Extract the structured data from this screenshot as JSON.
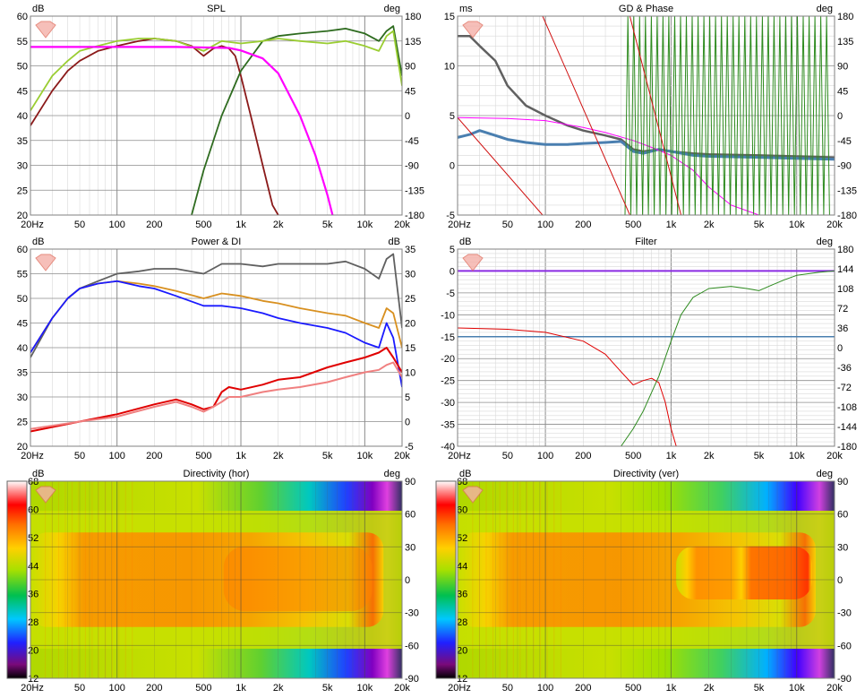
{
  "colors": {
    "grid_major": "#8c8c8c",
    "grid_minor": "#d9d9d9",
    "woofer": "#8b1a1a",
    "tweeter": "#2e6b1f",
    "sum": "#9acd32",
    "lowpass_target": "#ff00ff",
    "gd": "#4a7fb0",
    "power": "#1a1aff",
    "di": "#e00000"
  },
  "chart_data": [
    {
      "id": "spl",
      "type": "line",
      "title": "SPL",
      "xlabel": "",
      "ylabel": "dB",
      "y2label": "deg",
      "xscale": "log",
      "xlim": [
        20,
        20000
      ],
      "x_ticks": [
        "20Hz",
        "50",
        "100",
        "200",
        "500",
        "1k",
        "2k",
        "5k",
        "10k",
        "20k"
      ],
      "ylim": [
        20,
        60
      ],
      "y_ticks": [
        "20",
        "25",
        "30",
        "35",
        "40",
        "45",
        "50",
        "55",
        "60"
      ],
      "y2lim": [
        -180,
        180
      ],
      "y2_ticks": [
        "-180",
        "-135",
        "-90",
        "-45",
        "0",
        "45",
        "90",
        "135",
        "180"
      ],
      "series": [
        {
          "role": "woofer",
          "x": [
            20,
            30,
            40,
            50,
            70,
            100,
            150,
            200,
            300,
            400,
            500,
            600,
            700,
            800,
            900,
            1000,
            1200,
            1500,
            1800,
            2000
          ],
          "y": [
            38,
            45,
            49,
            51,
            53,
            54,
            55,
            55.5,
            55,
            54,
            52,
            53.5,
            54,
            53.5,
            52,
            48,
            40,
            30,
            22,
            20
          ]
        },
        {
          "role": "tweeter",
          "x": [
            400,
            500,
            700,
            1000,
            1500,
            2000,
            3000,
            5000,
            7000,
            10000,
            13000,
            15000,
            17000,
            20000
          ],
          "y": [
            20,
            29,
            40,
            49,
            55,
            56,
            56.5,
            57,
            57.5,
            56.5,
            55,
            57,
            58,
            48
          ]
        },
        {
          "role": "sum",
          "x": [
            20,
            30,
            40,
            50,
            70,
            100,
            150,
            200,
            300,
            500,
            700,
            1000,
            1500,
            2000,
            3000,
            5000,
            7000,
            10000,
            13000,
            15000,
            17000,
            20000
          ],
          "y": [
            41,
            48,
            51,
            53,
            54,
            55,
            55.5,
            55.5,
            55,
            53,
            55,
            54.5,
            55,
            55.5,
            55,
            54.5,
            55,
            54,
            53,
            56,
            57,
            46
          ]
        },
        {
          "role": "lowpass_target",
          "x": [
            20,
            100,
            300,
            800,
            1000,
            1500,
            2000,
            3000,
            4000,
            5000,
            5500
          ],
          "y": [
            53.8,
            53.8,
            53.8,
            53.6,
            53.1,
            51.5,
            48.5,
            40,
            32,
            24,
            20
          ]
        }
      ]
    },
    {
      "id": "gd_phase",
      "type": "line",
      "title": "GD & Phase",
      "xlabel": "",
      "ylabel": "ms",
      "y2label": "deg",
      "xscale": "log",
      "xlim": [
        20,
        20000
      ],
      "x_ticks": [
        "20Hz",
        "50",
        "100",
        "200",
        "500",
        "1k",
        "2k",
        "5k",
        "10k",
        "20k"
      ],
      "ylim": [
        -5,
        15
      ],
      "y_ticks": [
        "-5",
        "0",
        "5",
        "10",
        "15"
      ],
      "y2lim": [
        -180,
        180
      ],
      "y2_ticks": [
        "-180",
        "-135",
        "-90",
        "-45",
        "0",
        "45",
        "90",
        "135",
        "180"
      ],
      "series": [
        {
          "role": "group_delay",
          "x": [
            20,
            25,
            30,
            40,
            50,
            70,
            100,
            150,
            200,
            300,
            400,
            500,
            600,
            800,
            1000,
            1500,
            2000,
            5000,
            10000,
            20000
          ],
          "y": [
            13,
            13,
            12,
            10.5,
            8,
            6,
            5,
            4,
            3.5,
            3,
            2.6,
            1.6,
            1.4,
            1.6,
            1.4,
            1.2,
            1.1,
            1.0,
            0.9,
            0.8
          ]
        },
        {
          "role": "gd_total",
          "x": [
            20,
            25,
            30,
            40,
            50,
            70,
            100,
            150,
            200,
            300,
            400,
            500,
            600,
            800,
            1000,
            1500,
            2000,
            5000,
            10000,
            20000
          ],
          "y": [
            2.8,
            3.1,
            3.5,
            3.0,
            2.6,
            2.3,
            2.1,
            2.1,
            2.2,
            2.3,
            2.4,
            1.4,
            1.2,
            1.6,
            1.4,
            1.0,
            0.9,
            0.8,
            0.7,
            0.6
          ]
        },
        {
          "role": "lp_gd",
          "x": [
            20,
            50,
            100,
            200,
            300,
            500,
            700,
            1000,
            1500,
            2000,
            3000,
            5000,
            10000,
            20000
          ],
          "y": [
            4.8,
            4.7,
            4.5,
            3.8,
            3.3,
            2.5,
            1.8,
            1.0,
            -0.5,
            -2.2,
            -4,
            -5,
            -5,
            -5
          ]
        }
      ]
    },
    {
      "id": "power_di",
      "type": "line",
      "title": "Power & DI",
      "xlabel": "",
      "ylabel": "dB",
      "y2label": "dB",
      "xscale": "log",
      "xlim": [
        20,
        20000
      ],
      "x_ticks": [
        "20Hz",
        "50",
        "100",
        "200",
        "500",
        "1k",
        "2k",
        "5k",
        "10k",
        "20k"
      ],
      "ylim": [
        20,
        60
      ],
      "y_ticks": [
        "20",
        "25",
        "30",
        "35",
        "40",
        "45",
        "50",
        "55",
        "60"
      ],
      "y2lim": [
        -5,
        35
      ],
      "y2_ticks": [
        "-5",
        "0",
        "5",
        "10",
        "15",
        "20",
        "25",
        "30",
        "35"
      ],
      "series": [
        {
          "role": "on_axis",
          "x": [
            20,
            30,
            40,
            50,
            70,
            100,
            150,
            200,
            300,
            500,
            700,
            1000,
            1500,
            2000,
            3000,
            5000,
            7000,
            10000,
            13000,
            15000,
            17000,
            20000
          ],
          "y": [
            38,
            46,
            50,
            52,
            53.5,
            55,
            55.5,
            56,
            56,
            55,
            57,
            57,
            56.5,
            57,
            57,
            57,
            57.5,
            56,
            54,
            58,
            59,
            44
          ]
        },
        {
          "role": "listening_window",
          "x": [
            20,
            30,
            40,
            50,
            70,
            100,
            150,
            200,
            300,
            500,
            700,
            1000,
            1500,
            2000,
            3000,
            5000,
            7000,
            10000,
            13000,
            15000,
            17000,
            20000
          ],
          "y": [
            39,
            46,
            50,
            52,
            53,
            53.5,
            53,
            52.5,
            51.5,
            50,
            51,
            50.5,
            49.5,
            49,
            48,
            47,
            46.5,
            45,
            44,
            48,
            47,
            40
          ]
        },
        {
          "role": "power",
          "x": [
            20,
            30,
            40,
            50,
            70,
            100,
            150,
            200,
            300,
            500,
            700,
            1000,
            1500,
            2000,
            3000,
            5000,
            7000,
            10000,
            13000,
            15000,
            17000,
            20000
          ],
          "y": [
            39,
            46,
            50,
            52,
            53,
            53.5,
            52.5,
            52,
            50.5,
            48.5,
            48.5,
            48,
            47,
            46,
            45,
            44,
            43,
            41,
            40,
            45,
            42,
            32
          ]
        },
        {
          "role": "di",
          "x": [
            20,
            50,
            100,
            200,
            300,
            400,
            500,
            600,
            700,
            800,
            1000,
            1500,
            2000,
            3000,
            5000,
            7000,
            10000,
            13000,
            15000,
            17000,
            20000
          ],
          "y": [
            23,
            25,
            26.5,
            28.5,
            29.5,
            28.5,
            27.5,
            28,
            31,
            32,
            31.5,
            32.5,
            33.5,
            34,
            36,
            37,
            38,
            39,
            40,
            38,
            35
          ]
        },
        {
          "role": "sound_power_di",
          "x": [
            20,
            50,
            100,
            200,
            300,
            400,
            500,
            600,
            700,
            800,
            1000,
            1500,
            2000,
            3000,
            5000,
            7000,
            10000,
            13000,
            15000,
            17000,
            20000
          ],
          "y": [
            23.5,
            25,
            26,
            28,
            29,
            28,
            27,
            28,
            29,
            30,
            30,
            31,
            31.5,
            32,
            33,
            34,
            35,
            35.5,
            36.5,
            37,
            34
          ]
        }
      ]
    },
    {
      "id": "filter",
      "type": "line",
      "title": "Filter",
      "xlabel": "",
      "ylabel": "dB",
      "y2label": "deg",
      "xscale": "log",
      "xlim": [
        20,
        20000
      ],
      "x_ticks": [
        "20Hz",
        "50",
        "100",
        "200",
        "500",
        "1k",
        "2k",
        "5k",
        "10k",
        "20k"
      ],
      "ylim": [
        -40,
        5
      ],
      "y_ticks": [
        "-40",
        "-35",
        "-30",
        "-25",
        "-20",
        "-15",
        "-10",
        "-5",
        "0",
        "5"
      ],
      "y2lim": [
        -180,
        180
      ],
      "y2_ticks": [
        "-180",
        "-144",
        "-108",
        "-72",
        "-36",
        "0",
        "36",
        "72",
        "108",
        "144",
        "180"
      ],
      "series": [
        {
          "role": "flat_ref",
          "x": [
            20,
            20000
          ],
          "y": [
            0,
            0
          ]
        },
        {
          "role": "phase_ref",
          "x": [
            20,
            20000
          ],
          "y": [
            -15,
            -15
          ]
        },
        {
          "role": "lowpass",
          "x": [
            20,
            50,
            100,
            200,
            300,
            400,
            500,
            600,
            700,
            800,
            900,
            1000,
            1100
          ],
          "y": [
            -13,
            -13.3,
            -14,
            -16,
            -19,
            -23,
            -26,
            -25,
            -24.5,
            -25.5,
            -30,
            -36,
            -40
          ]
        },
        {
          "role": "highpass",
          "x": [
            400,
            500,
            600,
            800,
            1000,
            1200,
            1500,
            2000,
            3000,
            4000,
            5000,
            6000,
            8000,
            10000,
            15000,
            20000
          ],
          "y": [
            -40,
            -36,
            -32,
            -24,
            -16,
            -10,
            -6,
            -4,
            -3.5,
            -4,
            -4.5,
            -3.5,
            -2,
            -1,
            -0.3,
            0
          ]
        }
      ]
    },
    {
      "id": "dir_hor",
      "type": "heatmap",
      "title": "Directivity (hor)",
      "ylabel": "dB",
      "y2label": "deg",
      "xscale": "log",
      "xlim": [
        20,
        20000
      ],
      "x_ticks": [
        "20Hz",
        "50",
        "100",
        "200",
        "500",
        "1k",
        "2k",
        "5k",
        "10k",
        "20k"
      ],
      "y2lim": [
        -90,
        90
      ],
      "y2_ticks": [
        "-90",
        "-60",
        "-30",
        "0",
        "30",
        "60",
        "90"
      ],
      "colorbar_ticks": [
        "12",
        "20",
        "28",
        "36",
        "44",
        "52",
        "60",
        "68"
      ]
    },
    {
      "id": "dir_ver",
      "type": "heatmap",
      "title": "Directivity (ver)",
      "ylabel": "dB",
      "y2label": "deg",
      "xscale": "log",
      "xlim": [
        20,
        20000
      ],
      "x_ticks": [
        "20Hz",
        "50",
        "100",
        "200",
        "500",
        "1k",
        "2k",
        "5k",
        "10k",
        "20k"
      ],
      "y2lim": [
        -90,
        90
      ],
      "y2_ticks": [
        "-90",
        "-60",
        "-30",
        "0",
        "30",
        "60",
        "90"
      ],
      "colorbar_ticks": [
        "12",
        "20",
        "28",
        "36",
        "44",
        "52",
        "60",
        "68"
      ]
    }
  ]
}
